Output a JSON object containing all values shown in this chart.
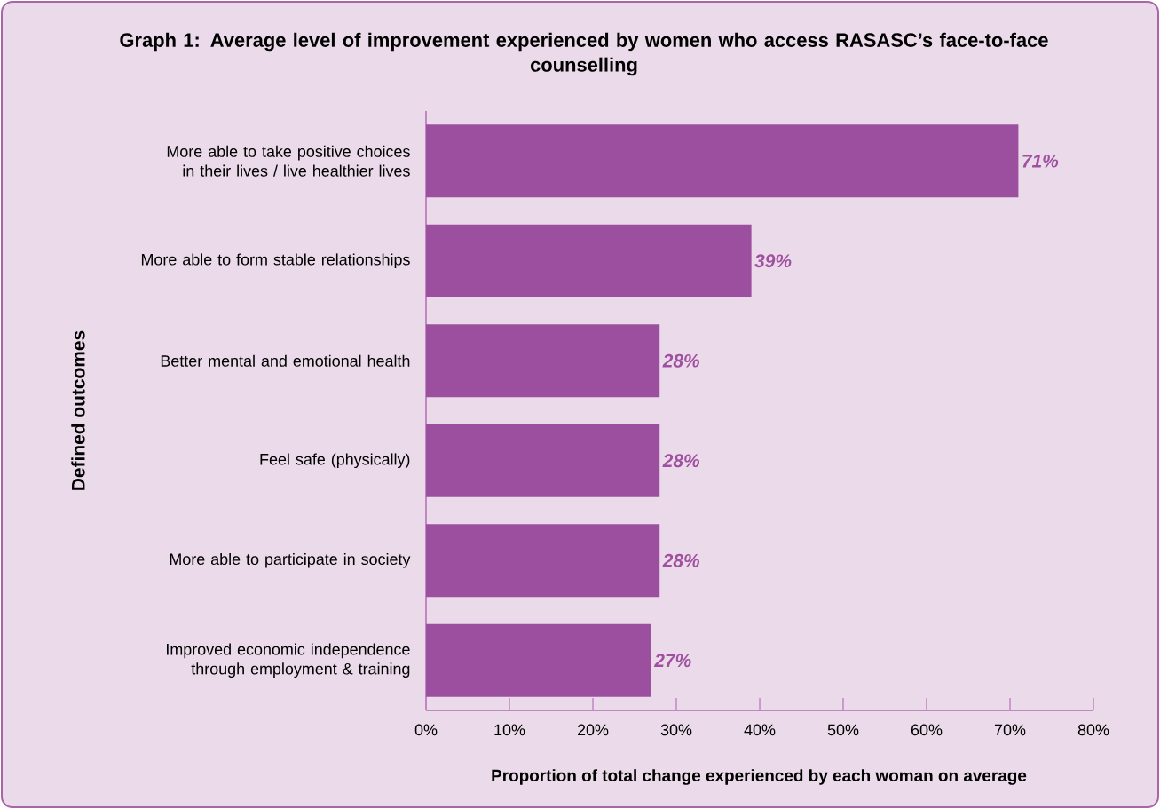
{
  "chart_data": {
    "type": "bar",
    "orientation": "horizontal",
    "title": "Graph 1: Average level of improvement experienced by women who access RASASC’s face-to-face counselling",
    "xlabel": "Proportion of total change experienced by each woman on average",
    "ylabel": "Defined outcomes",
    "categories": [
      "More able to take positive choices in their lives / live healthier lives",
      "More able to form stable relationships",
      "Better mental and emotional health",
      "Feel safe (physically)",
      "More able to participate in society",
      "Improved economic independence through employment & training"
    ],
    "values": [
      71,
      39,
      28,
      28,
      28,
      27
    ],
    "value_labels": [
      "71%",
      "39%",
      "28%",
      "28%",
      "28%",
      "27%"
    ],
    "color": "#9c4f9f",
    "xlim": [
      0,
      80
    ],
    "xticks": [
      {
        "value": 0,
        "label": "0%"
      },
      {
        "value": 10,
        "label": "10%"
      },
      {
        "value": 20,
        "label": "20%"
      },
      {
        "value": 30,
        "label": "30%"
      },
      {
        "value": 40,
        "label": "40%"
      },
      {
        "value": 50,
        "label": "50%"
      },
      {
        "value": 60,
        "label": "60%"
      },
      {
        "value": 70,
        "label": "70%"
      },
      {
        "value": 80,
        "label": "80%"
      }
    ]
  }
}
